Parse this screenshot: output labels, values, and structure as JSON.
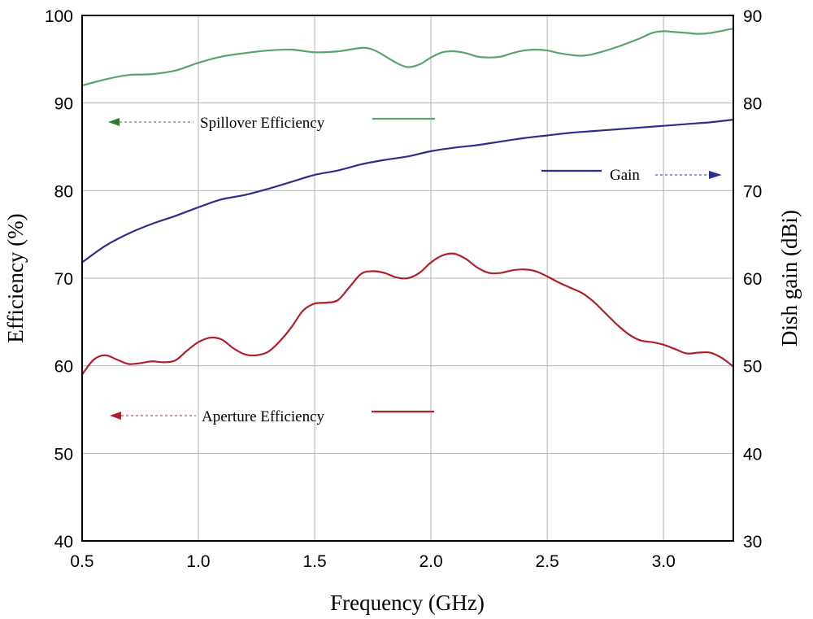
{
  "chart_data": {
    "type": "line",
    "title": "",
    "xlabel": "Frequency (GHz)",
    "ylabel_left": "Efficiency (%)",
    "ylabel_right": "Dish gain (dBi)",
    "xlim": [
      0.5,
      3.3
    ],
    "ylim_left": [
      40,
      100
    ],
    "ylim_right": [
      30,
      90
    ],
    "xticks": [
      0.5,
      1.0,
      1.5,
      2.0,
      2.5,
      3.0
    ],
    "xtick_labels": [
      "0.5",
      "1.0",
      "1.5",
      "2.0",
      "2.5",
      "3.0"
    ],
    "yticks_left": [
      40,
      50,
      60,
      70,
      80,
      90,
      100
    ],
    "yticks_right": [
      30,
      40,
      50,
      60,
      70,
      80,
      90
    ],
    "grid": true,
    "series": [
      {
        "name": "Spillover Efficiency",
        "axis": "left",
        "color": "#5aa46a",
        "arrow_color": "#2e7d32",
        "arrow_direction": "left",
        "x": [
          0.5,
          0.6,
          0.7,
          0.8,
          0.9,
          1.0,
          1.1,
          1.2,
          1.3,
          1.4,
          1.5,
          1.6,
          1.7,
          1.75,
          1.8,
          1.85,
          1.9,
          1.95,
          2.0,
          2.05,
          2.1,
          2.15,
          2.2,
          2.25,
          2.3,
          2.35,
          2.4,
          2.45,
          2.5,
          2.55,
          2.6,
          2.65,
          2.7,
          2.8,
          2.9,
          2.95,
          3.0,
          3.05,
          3.1,
          3.15,
          3.2,
          3.3
        ],
        "y": [
          92.0,
          92.7,
          93.2,
          93.3,
          93.7,
          94.6,
          95.3,
          95.7,
          96.0,
          96.1,
          95.8,
          95.9,
          96.3,
          96.1,
          95.4,
          94.6,
          94.1,
          94.4,
          95.2,
          95.8,
          95.9,
          95.7,
          95.3,
          95.2,
          95.3,
          95.7,
          96.0,
          96.1,
          96.0,
          95.7,
          95.5,
          95.4,
          95.6,
          96.4,
          97.4,
          98.0,
          98.2,
          98.1,
          98.0,
          97.9,
          98.0,
          98.5
        ]
      },
      {
        "name": "Gain",
        "axis": "right",
        "color": "#2e2e8c",
        "arrow_color": "#2e2e8c",
        "arrow_direction": "right",
        "x": [
          0.5,
          0.6,
          0.7,
          0.8,
          0.9,
          1.0,
          1.1,
          1.2,
          1.3,
          1.4,
          1.5,
          1.6,
          1.7,
          1.8,
          1.9,
          2.0,
          2.1,
          2.2,
          2.3,
          2.4,
          2.5,
          2.6,
          2.7,
          2.8,
          2.9,
          3.0,
          3.1,
          3.2,
          3.3
        ],
        "y": [
          61.8,
          63.7,
          65.1,
          66.2,
          67.1,
          68.1,
          69.0,
          69.5,
          70.2,
          71.0,
          71.8,
          72.3,
          73.0,
          73.5,
          73.9,
          74.5,
          74.9,
          75.2,
          75.6,
          76.0,
          76.3,
          76.6,
          76.8,
          77.0,
          77.2,
          77.4,
          77.6,
          77.8,
          78.1
        ]
      },
      {
        "name": "Aperture Efficiency",
        "axis": "left",
        "color": "#b0202a",
        "arrow_color": "#b0202a",
        "arrow_direction": "left",
        "x": [
          0.5,
          0.55,
          0.6,
          0.65,
          0.7,
          0.75,
          0.8,
          0.85,
          0.9,
          0.95,
          1.0,
          1.05,
          1.1,
          1.15,
          1.2,
          1.25,
          1.3,
          1.35,
          1.4,
          1.45,
          1.5,
          1.55,
          1.6,
          1.65,
          1.7,
          1.75,
          1.8,
          1.85,
          1.9,
          1.95,
          2.0,
          2.05,
          2.1,
          2.15,
          2.2,
          2.25,
          2.3,
          2.35,
          2.4,
          2.45,
          2.5,
          2.55,
          2.6,
          2.65,
          2.7,
          2.75,
          2.8,
          2.85,
          2.9,
          2.95,
          3.0,
          3.05,
          3.1,
          3.15,
          3.2,
          3.25,
          3.3
        ],
        "y": [
          59.0,
          60.7,
          61.2,
          60.7,
          60.2,
          60.3,
          60.5,
          60.4,
          60.6,
          61.7,
          62.7,
          63.2,
          63.0,
          62.0,
          61.3,
          61.2,
          61.6,
          62.8,
          64.4,
          66.3,
          67.1,
          67.2,
          67.5,
          69.0,
          70.5,
          70.8,
          70.6,
          70.1,
          70.0,
          70.6,
          71.8,
          72.6,
          72.8,
          72.2,
          71.2,
          70.6,
          70.6,
          70.9,
          71.0,
          70.8,
          70.2,
          69.5,
          68.9,
          68.3,
          67.3,
          66.0,
          64.7,
          63.6,
          62.9,
          62.7,
          62.4,
          61.9,
          61.4,
          61.5,
          61.5,
          60.9,
          59.9
        ]
      }
    ]
  }
}
